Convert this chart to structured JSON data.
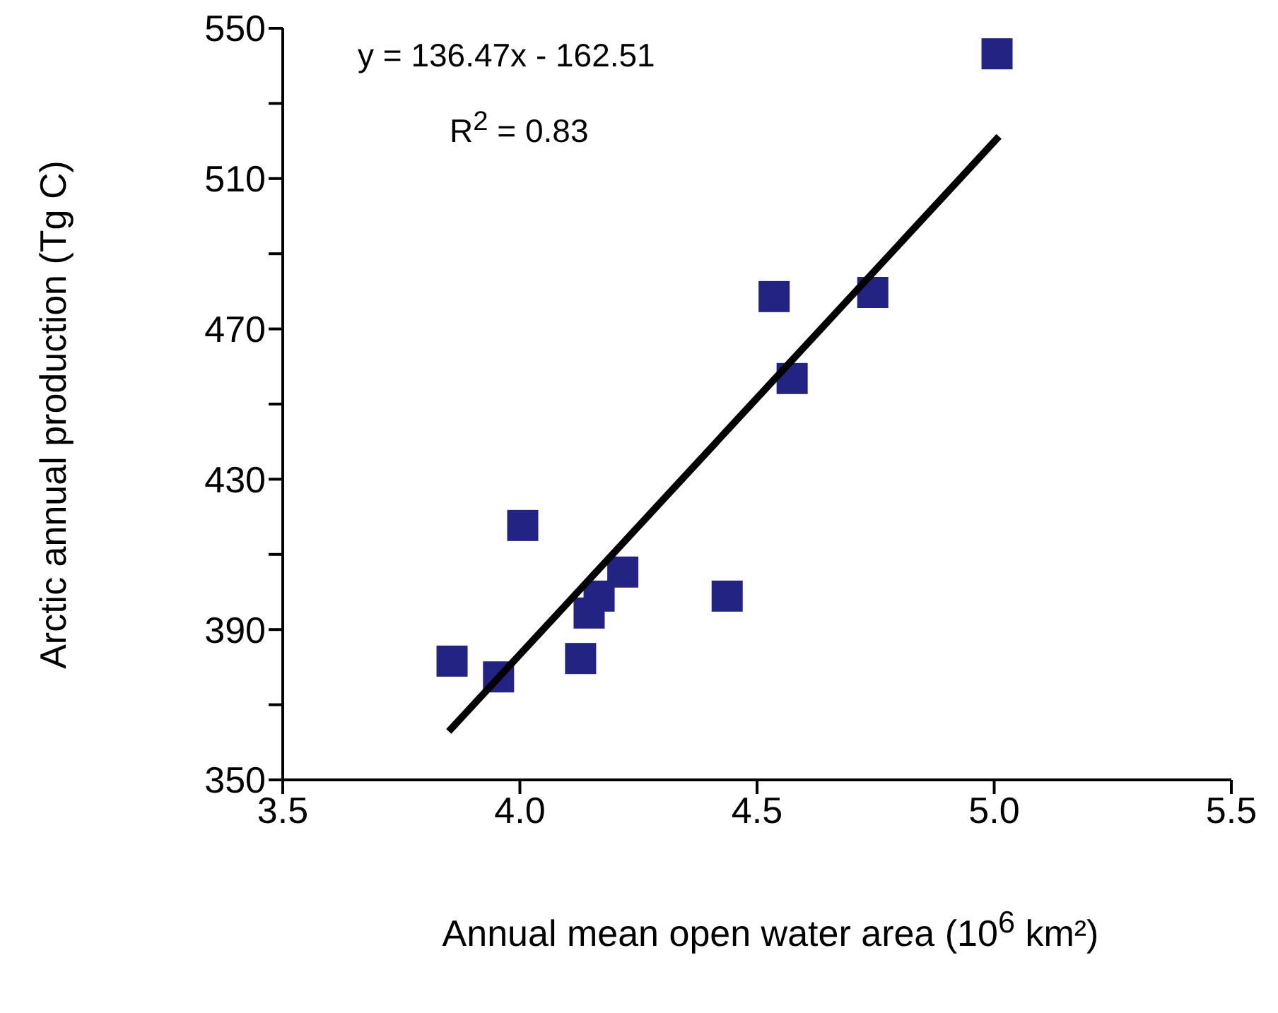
{
  "chart_data": {
    "type": "scatter",
    "xlabel": "Annual mean open water area (10$^{6}$ km²)",
    "ylabel": "Arctic annual production (Tg C)",
    "xlim": [
      3.5,
      5.5
    ],
    "xticks": [
      3.5,
      {
        "value": 4,
        "label": "4.0"
      },
      4.5,
      {
        "value": 5,
        "label": "5.0"
      },
      5.5
    ],
    "ylim": [
      350,
      550
    ],
    "yticks": [
      350,
      {
        "value": 370,
        "label": null
      },
      390,
      {
        "value": 410,
        "label": null
      },
      430,
      {
        "value": 450,
        "label": null
      },
      470,
      {
        "value": 490,
        "label": null
      },
      510,
      {
        "value": 530,
        "label": null
      },
      550
    ],
    "marker": "square",
    "series": [
      {
        "type": "scatter",
        "color": "#232383",
        "x": [
          3.857,
          3.955,
          4.006,
          4.128,
          4.146,
          4.167,
          4.217,
          4.437,
          4.536,
          4.574,
          4.744,
          5.006
        ],
        "values": [
          381.6,
          377.4,
          417.7,
          382.3,
          394.4,
          398.9,
          405.3,
          398.9,
          478.6,
          456.8,
          479.7,
          543.2
        ]
      },
      {
        "type": "line",
        "color": "#000000",
        "marker": "none",
        "line_style": "solid",
        "x": [
          3.85,
          5.01
        ],
        "values": [
          362.9,
          521.2
        ]
      }
    ],
    "annotations": [
      "y = 136.47x - 162.51",
      "R$^{2}$ = 0.83"
    ]
  }
}
